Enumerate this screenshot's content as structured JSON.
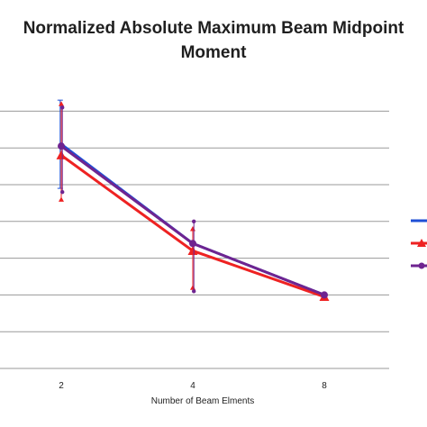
{
  "chart_data": {
    "type": "line",
    "title_line1": "Normalized Absolute Maximum Beam Midpoint",
    "title_line2": "Moment",
    "xlabel": "Number of Beam Elments",
    "ylabel": "",
    "categories": [
      "2",
      "4",
      "8"
    ],
    "ylim": [
      0,
      8
    ],
    "y_tick_values": [
      0,
      1,
      2,
      3,
      4,
      5,
      6,
      7
    ],
    "y_tick_labels_visible": false,
    "grid": true,
    "legend_position": "right",
    "series": [
      {
        "color": "#1f4fd6",
        "marker": "none",
        "values": [
          6.1,
          3.4,
          2.0
        ],
        "error_low": [
          4.9,
          3.4,
          2.0
        ],
        "error_high": [
          7.3,
          3.4,
          2.0
        ]
      },
      {
        "color": "#ee2222",
        "marker": "triangle",
        "values": [
          5.8,
          3.2,
          1.95
        ],
        "error_low": [
          4.6,
          2.2,
          1.95
        ],
        "error_high": [
          7.2,
          3.8,
          1.95
        ]
      },
      {
        "color": "#6f2490",
        "marker": "circle",
        "values": [
          6.05,
          3.4,
          2.0
        ],
        "error_low": [
          4.8,
          2.1,
          2.0
        ],
        "error_high": [
          7.1,
          4.0,
          2.0
        ]
      }
    ]
  }
}
